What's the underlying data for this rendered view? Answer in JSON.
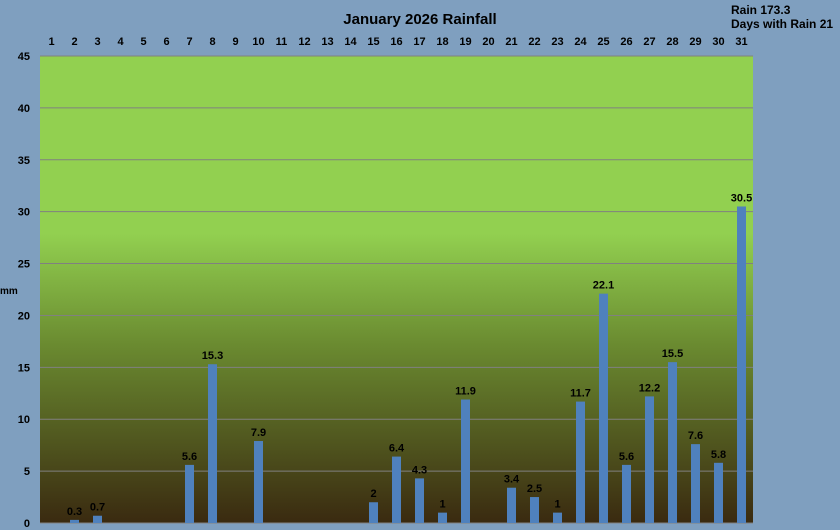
{
  "chart_data": {
    "type": "bar",
    "title": "January 2026 Rainfall",
    "ylabel": "mm",
    "ylim": [
      0,
      45
    ],
    "yticks": [
      0,
      5,
      10,
      15,
      20,
      25,
      30,
      35,
      40,
      45
    ],
    "grid": true,
    "categories": [
      "1",
      "2",
      "3",
      "4",
      "5",
      "6",
      "7",
      "8",
      "9",
      "10",
      "11",
      "12",
      "13",
      "14",
      "15",
      "16",
      "17",
      "18",
      "19",
      "20",
      "21",
      "22",
      "23",
      "24",
      "25",
      "26",
      "27",
      "28",
      "29",
      "30",
      "31"
    ],
    "values": [
      0,
      0.3,
      0.7,
      0,
      0,
      0,
      5.6,
      15.3,
      0,
      7.9,
      0,
      0,
      0,
      0,
      2,
      6.4,
      4.3,
      1,
      11.9,
      0,
      3.4,
      2.5,
      1,
      11.7,
      22.1,
      5.6,
      12.2,
      15.5,
      7.6,
      5.8,
      30.5
    ],
    "data_labels": [
      "",
      "0.3",
      "0.7",
      "",
      "",
      "",
      "5.6",
      "15.3",
      "",
      "7.9",
      "",
      "",
      "",
      "",
      "2",
      "6.4",
      "4.3",
      "1",
      "11.9",
      "",
      "3.4",
      "2.5",
      "1",
      "11.7",
      "22.1",
      "5.6",
      "12.2",
      "15.5",
      "7.6",
      "5.8",
      "30.5"
    ],
    "summary": {
      "total_label": "Rain 173.3",
      "days_label": "Days with Rain 21"
    },
    "colors": {
      "background": "#7f9fbf",
      "bar": "#4f81bd",
      "plot_top": "#92d050",
      "plot_bottom": "#3a2a10",
      "grid": "#808080"
    }
  }
}
